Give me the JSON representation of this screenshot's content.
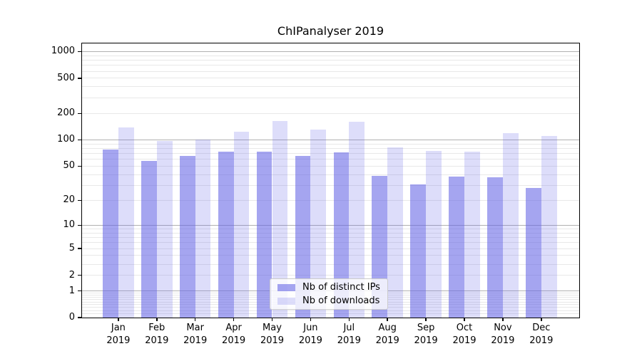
{
  "title": "ChIPanalyser 2019",
  "colors": {
    "bar_base": "#6464e6",
    "grid_major": "#b0b0b0",
    "grid_minor": "#e8e8e8",
    "axis": "#000000",
    "legend_border": "#cccccc",
    "legend_background": "rgba(255,255,255,0.8)"
  },
  "chart_data": {
    "type": "bar",
    "title": "ChIPanalyser 2019",
    "yscale": "log1p",
    "ylim": [
      0,
      1200
    ],
    "grid": true,
    "legend_position": "lower center",
    "year": "2019",
    "months": [
      "Jan",
      "Feb",
      "Mar",
      "Apr",
      "May",
      "Jun",
      "Jul",
      "Aug",
      "Sep",
      "Oct",
      "Nov",
      "Dec"
    ],
    "categories": [
      "Jan 2019",
      "Feb 2019",
      "Mar 2019",
      "Apr 2019",
      "May 2019",
      "Jun 2019",
      "Jul 2019",
      "Aug 2019",
      "Sep 2019",
      "Oct 2019",
      "Nov 2019",
      "Dec 2019"
    ],
    "ytick_labels": [
      "1000",
      "500",
      "200",
      "100",
      "50",
      "20",
      "10",
      "5",
      "2",
      "1",
      "0"
    ],
    "series": [
      {
        "name": "Nb of distinct IPs",
        "color": "#6464e6",
        "alpha": 0.58,
        "values": [
          77,
          58,
          65,
          74,
          74,
          65,
          72,
          39,
          31,
          38,
          37,
          28
        ]
      },
      {
        "name": "Nb of downloads",
        "color": "#6464e6",
        "alpha": 0.22,
        "values": [
          138,
          97,
          100,
          124,
          165,
          130,
          160,
          82,
          75,
          73,
          120,
          110
        ]
      }
    ]
  }
}
